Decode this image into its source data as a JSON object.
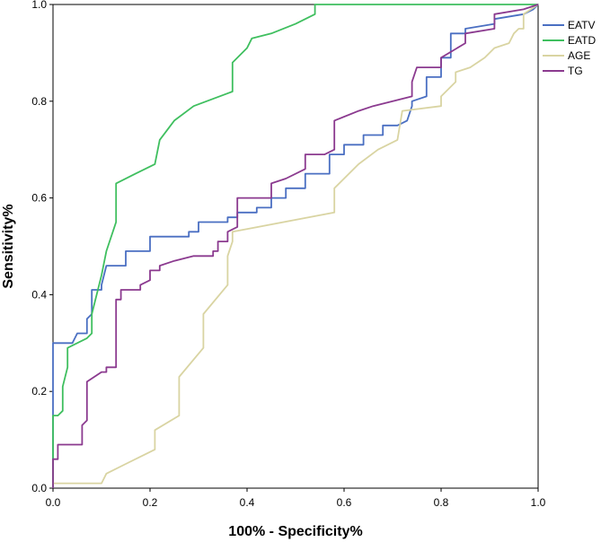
{
  "chart_data": {
    "type": "line",
    "xlabel": "100% - Specificity%",
    "ylabel": "Sensitivity%",
    "xlim": [
      0,
      1
    ],
    "ylim": [
      0,
      1
    ],
    "xticks": [
      "0.0",
      "0.2",
      "0.4",
      "0.6",
      "0.8",
      "1.0"
    ],
    "yticks": [
      "0.0",
      "0.2",
      "0.4",
      "0.6",
      "0.8",
      "1.0"
    ],
    "grid": false,
    "legend_position": "top-right-outside",
    "series": [
      {
        "name": "EATV",
        "color": "#4a6fc2",
        "x": [
          0,
          0,
          0.04,
          0.05,
          0.07,
          0.07,
          0.08,
          0.08,
          0.1,
          0.1,
          0.11,
          0.15,
          0.15,
          0.2,
          0.2,
          0.27,
          0.28,
          0.28,
          0.3,
          0.3,
          0.34,
          0.36,
          0.36,
          0.38,
          0.38,
          0.42,
          0.42,
          0.45,
          0.45,
          0.48,
          0.48,
          0.52,
          0.52,
          0.57,
          0.57,
          0.6,
          0.6,
          0.64,
          0.64,
          0.68,
          0.68,
          0.71,
          0.73,
          0.73,
          0.74,
          0.74,
          0.77,
          0.77,
          0.8,
          0.8,
          0.82,
          0.82,
          0.85,
          0.85,
          0.91,
          0.91,
          0.97,
          0.97,
          0.99,
          1.0
        ],
        "y": [
          0,
          0.3,
          0.3,
          0.32,
          0.32,
          0.35,
          0.36,
          0.41,
          0.41,
          0.42,
          0.46,
          0.46,
          0.49,
          0.49,
          0.52,
          0.52,
          0.52,
          0.53,
          0.53,
          0.55,
          0.55,
          0.55,
          0.56,
          0.56,
          0.57,
          0.57,
          0.58,
          0.58,
          0.6,
          0.6,
          0.62,
          0.62,
          0.65,
          0.65,
          0.69,
          0.69,
          0.71,
          0.71,
          0.73,
          0.73,
          0.75,
          0.75,
          0.76,
          0.76,
          0.79,
          0.8,
          0.81,
          0.85,
          0.85,
          0.89,
          0.89,
          0.94,
          0.94,
          0.95,
          0.96,
          0.97,
          0.98,
          0.98,
          0.99,
          1.0
        ]
      },
      {
        "name": "EATD",
        "color": "#3fbf5f",
        "x": [
          0,
          0,
          0.01,
          0.02,
          0.02,
          0.03,
          0.03,
          0.07,
          0.08,
          0.08,
          0.1,
          0.11,
          0.13,
          0.13,
          0.17,
          0.21,
          0.22,
          0.25,
          0.29,
          0.37,
          0.37,
          0.4,
          0.41,
          0.45,
          0.5,
          0.54,
          0.54,
          0.6,
          1.0
        ],
        "y": [
          0,
          0.15,
          0.15,
          0.16,
          0.21,
          0.25,
          0.29,
          0.31,
          0.32,
          0.36,
          0.44,
          0.49,
          0.55,
          0.63,
          0.65,
          0.67,
          0.72,
          0.76,
          0.79,
          0.82,
          0.88,
          0.91,
          0.93,
          0.94,
          0.96,
          0.98,
          1.0,
          1.0,
          1.0
        ]
      },
      {
        "name": "AGE",
        "color": "#d9d4a2",
        "x": [
          0,
          0.1,
          0.11,
          0.15,
          0.19,
          0.21,
          0.21,
          0.26,
          0.26,
          0.31,
          0.31,
          0.36,
          0.36,
          0.37,
          0.37,
          0.58,
          0.58,
          0.6,
          0.63,
          0.67,
          0.71,
          0.72,
          0.8,
          0.8,
          0.83,
          0.83,
          0.86,
          0.89,
          0.91,
          0.94,
          0.95,
          0.96,
          0.97,
          0.97,
          1.0
        ],
        "y": [
          0.01,
          0.01,
          0.03,
          0.05,
          0.07,
          0.08,
          0.12,
          0.15,
          0.23,
          0.29,
          0.36,
          0.42,
          0.48,
          0.51,
          0.53,
          0.57,
          0.62,
          0.64,
          0.67,
          0.7,
          0.72,
          0.78,
          0.79,
          0.81,
          0.84,
          0.86,
          0.87,
          0.89,
          0.91,
          0.92,
          0.94,
          0.95,
          0.95,
          0.98,
          1.0
        ]
      },
      {
        "name": "TG",
        "color": "#8b3a8f",
        "x": [
          0,
          0,
          0.01,
          0.01,
          0.06,
          0.06,
          0.07,
          0.07,
          0.1,
          0.11,
          0.11,
          0.13,
          0.13,
          0.14,
          0.14,
          0.18,
          0.18,
          0.2,
          0.2,
          0.22,
          0.22,
          0.25,
          0.29,
          0.33,
          0.33,
          0.34,
          0.34,
          0.36,
          0.36,
          0.38,
          0.38,
          0.45,
          0.45,
          0.48,
          0.48,
          0.52,
          0.52,
          0.56,
          0.58,
          0.58,
          0.63,
          0.66,
          0.74,
          0.74,
          0.75,
          0.78,
          0.8,
          0.8,
          0.85,
          0.85,
          0.91,
          0.91,
          0.97,
          1.0
        ],
        "y": [
          0,
          0.06,
          0.06,
          0.09,
          0.09,
          0.13,
          0.14,
          0.22,
          0.24,
          0.24,
          0.25,
          0.25,
          0.39,
          0.39,
          0.41,
          0.41,
          0.42,
          0.43,
          0.45,
          0.45,
          0.46,
          0.47,
          0.48,
          0.48,
          0.49,
          0.49,
          0.51,
          0.51,
          0.53,
          0.54,
          0.6,
          0.6,
          0.63,
          0.64,
          0.64,
          0.66,
          0.69,
          0.69,
          0.7,
          0.76,
          0.78,
          0.79,
          0.81,
          0.84,
          0.87,
          0.87,
          0.87,
          0.89,
          0.92,
          0.94,
          0.95,
          0.98,
          0.99,
          1.0
        ]
      }
    ]
  }
}
